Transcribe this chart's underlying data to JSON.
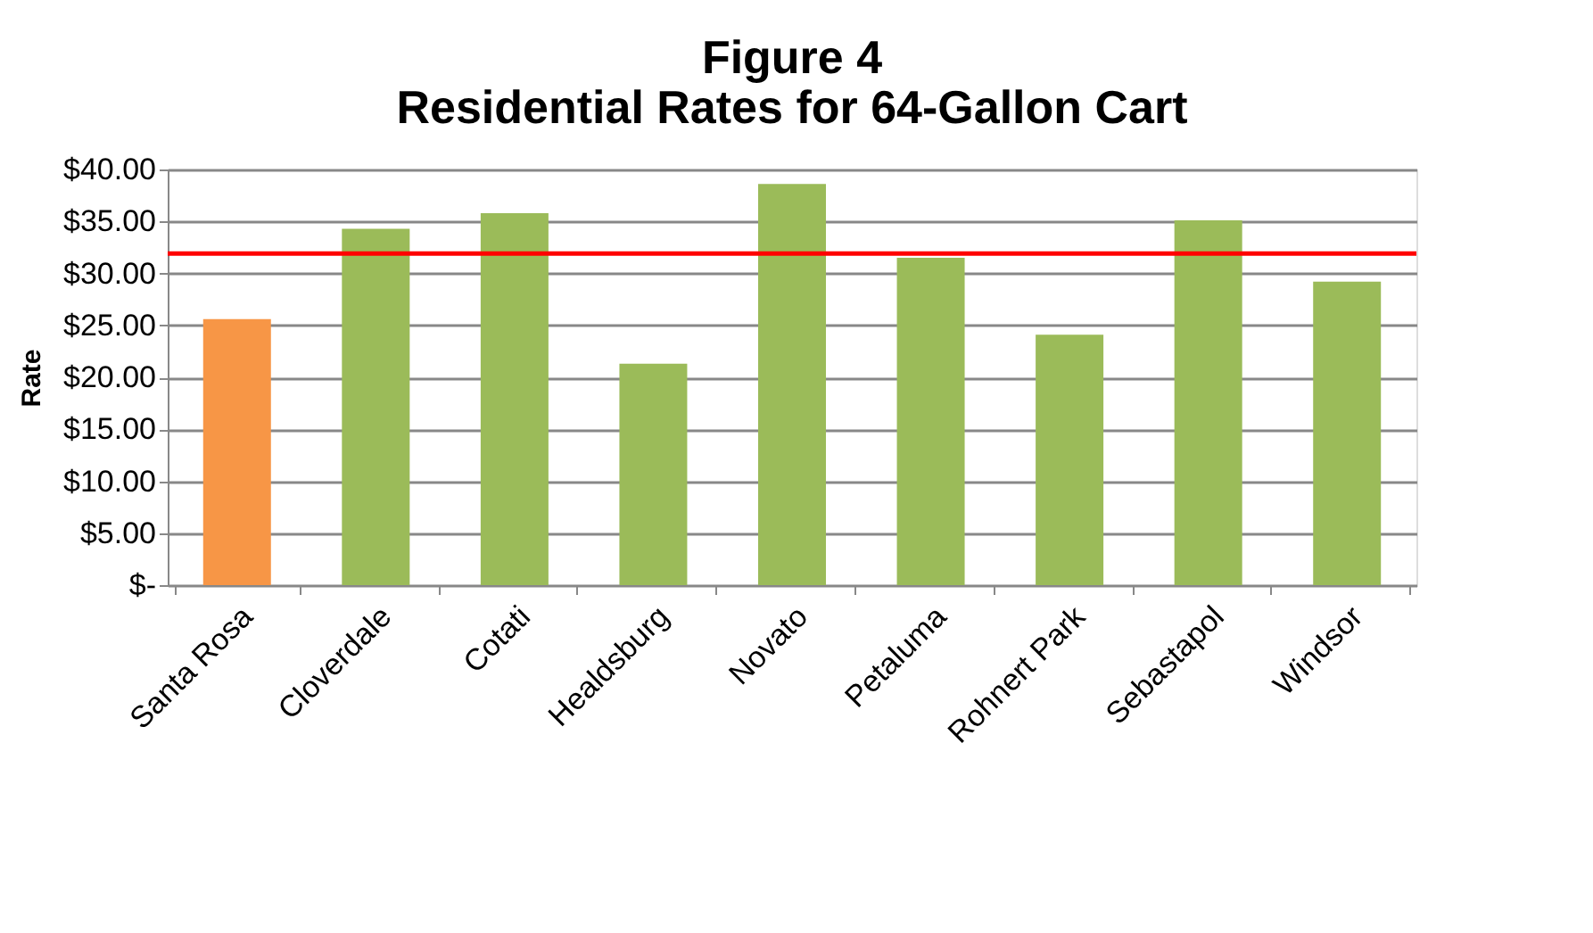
{
  "chart_data": {
    "type": "bar",
    "title": "Figure 4\nResidential Rates for 64-Gallon Cart",
    "ylabel": "Rate",
    "categories": [
      "Santa Rosa",
      "Cloverdale",
      "Cotati",
      "Healdsburg",
      "Novato",
      "Petaluma",
      "Rohnert Park",
      "Sebastapol",
      "Windsor"
    ],
    "values": [
      25.6,
      34.3,
      35.8,
      21.3,
      38.6,
      31.5,
      24.1,
      35.1,
      29.2
    ],
    "colors": [
      "#f79646",
      "#9bbb59",
      "#9bbb59",
      "#9bbb59",
      "#9bbb59",
      "#9bbb59",
      "#9bbb59",
      "#9bbb59",
      "#9bbb59"
    ],
    "ylim": [
      0,
      40
    ],
    "yticks": [
      {
        "value": 0,
        "label": "$-"
      },
      {
        "value": 5,
        "label": "$5.00"
      },
      {
        "value": 10,
        "label": "$10.00"
      },
      {
        "value": 15,
        "label": "$15.00"
      },
      {
        "value": 20,
        "label": "$20.00"
      },
      {
        "value": 25,
        "label": "$25.00"
      },
      {
        "value": 30,
        "label": "$30.00"
      },
      {
        "value": 35,
        "label": "$35.00"
      },
      {
        "value": 40,
        "label": "$40.00"
      }
    ],
    "ref_lines": [
      {
        "axis": "y",
        "value": 31.9,
        "color": "#ff0000"
      }
    ],
    "grid": "y"
  }
}
